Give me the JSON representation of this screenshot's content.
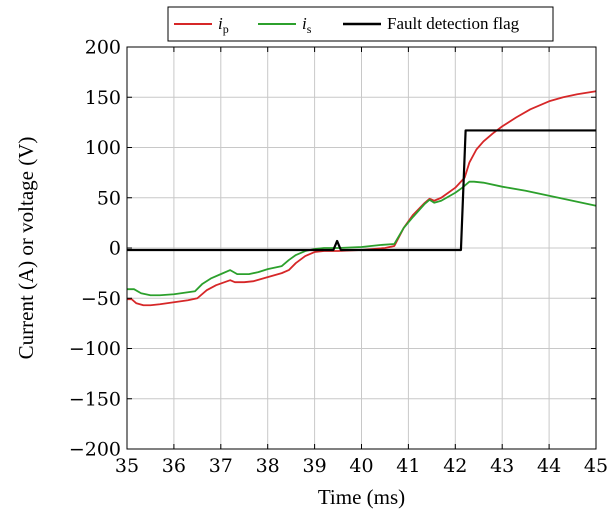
{
  "chart_data": {
    "type": "line",
    "title": "",
    "xlabel": "Time (ms)",
    "ylabel": "Current (A) or voltage (V)",
    "xlim": [
      35,
      45
    ],
    "ylim": [
      -200,
      200
    ],
    "xticks": [
      35,
      36,
      37,
      38,
      39,
      40,
      41,
      42,
      43,
      44,
      45
    ],
    "yticks": [
      -200,
      -150,
      -100,
      -50,
      0,
      50,
      100,
      150,
      200
    ],
    "xtick_labels": [
      "35",
      "36",
      "37",
      "38",
      "39",
      "40",
      "41",
      "42",
      "43",
      "44",
      "45"
    ],
    "ytick_labels": [
      "−200",
      "−150",
      "−100",
      "−50",
      "0",
      "50",
      "100",
      "150",
      "200"
    ],
    "grid": true,
    "legend_position": "top-center",
    "series": [
      {
        "name": "ip",
        "legend_main": "i",
        "legend_sub": "p",
        "color": "#d62728",
        "points": [
          [
            35.0,
            -51
          ],
          [
            35.1,
            -51
          ],
          [
            35.2,
            -55
          ],
          [
            35.35,
            -57
          ],
          [
            35.5,
            -57
          ],
          [
            35.7,
            -56
          ],
          [
            36.0,
            -54
          ],
          [
            36.3,
            -52
          ],
          [
            36.5,
            -50
          ],
          [
            36.7,
            -42
          ],
          [
            36.9,
            -37
          ],
          [
            37.2,
            -32
          ],
          [
            37.3,
            -34
          ],
          [
            37.5,
            -34
          ],
          [
            37.7,
            -33
          ],
          [
            38.0,
            -29
          ],
          [
            38.3,
            -25
          ],
          [
            38.45,
            -22
          ],
          [
            38.6,
            -15
          ],
          [
            38.8,
            -8
          ],
          [
            39.0,
            -4
          ],
          [
            39.2,
            -3
          ],
          [
            39.5,
            -3
          ],
          [
            40.0,
            -2
          ],
          [
            40.5,
            0
          ],
          [
            40.7,
            2
          ],
          [
            40.9,
            20
          ],
          [
            41.1,
            33
          ],
          [
            41.35,
            45
          ],
          [
            41.45,
            49
          ],
          [
            41.55,
            47
          ],
          [
            41.7,
            50
          ],
          [
            41.85,
            55
          ],
          [
            42.0,
            60
          ],
          [
            42.2,
            70
          ],
          [
            42.3,
            85
          ],
          [
            42.45,
            98
          ],
          [
            42.6,
            106
          ],
          [
            42.8,
            114
          ],
          [
            43.0,
            121
          ],
          [
            43.3,
            130
          ],
          [
            43.6,
            138
          ],
          [
            44.0,
            146
          ],
          [
            44.3,
            150
          ],
          [
            44.6,
            153
          ],
          [
            45.0,
            156
          ]
        ]
      },
      {
        "name": "is",
        "legend_main": "i",
        "legend_sub": "s",
        "color": "#2ca02c",
        "points": [
          [
            35.0,
            -41
          ],
          [
            35.15,
            -41
          ],
          [
            35.3,
            -45
          ],
          [
            35.5,
            -47
          ],
          [
            35.7,
            -47
          ],
          [
            36.0,
            -46
          ],
          [
            36.3,
            -44
          ],
          [
            36.45,
            -43
          ],
          [
            36.6,
            -36
          ],
          [
            36.8,
            -30
          ],
          [
            37.0,
            -26
          ],
          [
            37.2,
            -22
          ],
          [
            37.35,
            -26
          ],
          [
            37.6,
            -26
          ],
          [
            37.8,
            -24
          ],
          [
            38.0,
            -21
          ],
          [
            38.3,
            -18
          ],
          [
            38.45,
            -12
          ],
          [
            38.6,
            -7
          ],
          [
            38.8,
            -3
          ],
          [
            39.0,
            -1
          ],
          [
            39.2,
            0
          ],
          [
            39.5,
            0
          ],
          [
            40.0,
            1
          ],
          [
            40.4,
            3
          ],
          [
            40.7,
            4
          ],
          [
            40.9,
            20
          ],
          [
            41.1,
            31
          ],
          [
            41.35,
            44
          ],
          [
            41.45,
            48
          ],
          [
            41.55,
            45
          ],
          [
            41.7,
            47
          ],
          [
            41.85,
            51
          ],
          [
            42.0,
            55
          ],
          [
            42.15,
            60
          ],
          [
            42.3,
            66
          ],
          [
            42.4,
            66
          ],
          [
            42.6,
            65
          ],
          [
            43.0,
            61
          ],
          [
            43.5,
            57
          ],
          [
            44.0,
            52
          ],
          [
            44.5,
            47
          ],
          [
            45.0,
            42
          ]
        ]
      },
      {
        "name": "Fault detection flag",
        "legend_main": "Fault detection flag",
        "legend_sub": "",
        "color": "#000000",
        "points": [
          [
            35.0,
            -2
          ],
          [
            36.0,
            -2
          ],
          [
            37.0,
            -2
          ],
          [
            38.0,
            -2
          ],
          [
            39.0,
            -2
          ],
          [
            39.4,
            -2
          ],
          [
            39.48,
            7
          ],
          [
            39.56,
            -2
          ],
          [
            40.0,
            -2
          ],
          [
            41.0,
            -2
          ],
          [
            42.0,
            -2
          ],
          [
            42.12,
            -2
          ],
          [
            42.22,
            117
          ],
          [
            43.0,
            117
          ],
          [
            44.0,
            117
          ],
          [
            45.0,
            117
          ]
        ]
      }
    ]
  }
}
